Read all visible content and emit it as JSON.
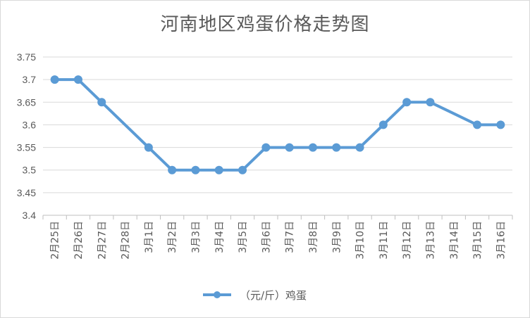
{
  "chart_data": {
    "type": "line",
    "title": "河南地区鸡蛋价格走势图",
    "xlabel": "",
    "ylabel": "",
    "ylim": [
      3.4,
      3.75
    ],
    "yticks": [
      "3.4",
      "3.45",
      "3.5",
      "3.55",
      "3.6",
      "3.65",
      "3.7",
      "3.75"
    ],
    "grid": true,
    "legend_position": "bottom",
    "categories": [
      "2月25日",
      "2月26日",
      "2月27日",
      "2月28日",
      "3月1日",
      "3月2日",
      "3月3日",
      "3月4日",
      "3月5日",
      "3月6日",
      "3月7日",
      "3月8日",
      "3月9日",
      "3月10日",
      "3月11日",
      "3月12日",
      "3月13日",
      "3月14日",
      "3月15日",
      "3月16日"
    ],
    "series": [
      {
        "name": "（元/斤）鸡蛋",
        "color": "#5b9bd5",
        "values": [
          3.7,
          3.7,
          3.65,
          null,
          3.55,
          3.5,
          3.5,
          3.5,
          3.5,
          3.55,
          3.55,
          3.55,
          3.55,
          3.55,
          3.6,
          3.65,
          3.65,
          null,
          3.6,
          3.6
        ]
      }
    ]
  }
}
